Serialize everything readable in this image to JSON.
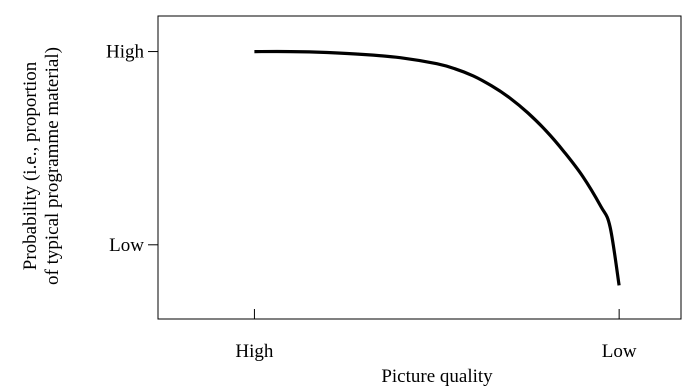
{
  "chart_data": {
    "type": "line",
    "title": "",
    "xlabel": "Picture quality",
    "ylabel": [
      "Probability (i.e., proportion",
      "of typical programme material)"
    ],
    "x_ticks": [
      {
        "value": 0,
        "label": "High"
      },
      {
        "value": 1,
        "label": "Low"
      }
    ],
    "y_ticks": [
      {
        "value": 1,
        "label": "High"
      },
      {
        "value": 0,
        "label": "Low"
      }
    ],
    "xlim": [
      -0.2644,
      1.1696
    ],
    "ylim": [
      -0.384,
      1.184
    ],
    "grid": false,
    "legend": "none",
    "series": [
      {
        "color": "#000000",
        "points": [
          [
            0.0,
            1.0
          ],
          [
            0.1,
            1.0
          ],
          [
            0.2,
            0.995
          ],
          [
            0.3,
            0.985
          ],
          [
            0.4,
            0.968
          ],
          [
            0.5,
            0.937
          ],
          [
            0.55,
            0.911
          ],
          [
            0.6,
            0.874
          ],
          [
            0.65,
            0.823
          ],
          [
            0.7,
            0.76
          ],
          [
            0.75,
            0.682
          ],
          [
            0.8,
            0.589
          ],
          [
            0.85,
            0.479
          ],
          [
            0.9,
            0.354
          ],
          [
            0.95,
            0.198
          ],
          [
            0.975,
            0.094
          ],
          [
            1.0,
            -0.21
          ]
        ]
      }
    ]
  }
}
